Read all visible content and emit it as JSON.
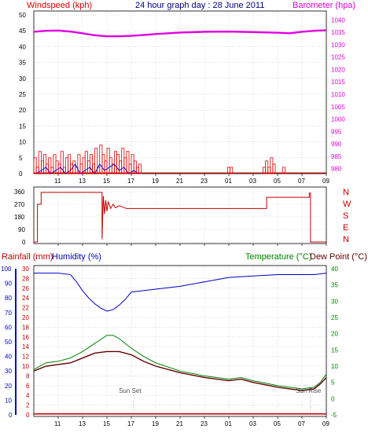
{
  "colors": {
    "wind": "#e00000",
    "wind_gust_fill": "#e00000",
    "wind_avg": "#0000d0",
    "wind_green": "#009000",
    "barometer": "#e000e0",
    "direction": "#c00000",
    "rainfall": "#c00000",
    "humidity": "#0000c0",
    "temperature": "#008000",
    "dewpoint": "#600000",
    "title": "#000080",
    "axis_right_temp": "#008000"
  },
  "chart_data": [
    {
      "type": "line",
      "title": "24 hour graph day : 28 June 2011",
      "ylabel_left": "Windspeed (kph)",
      "ylabel_right": "Barometer (hpa)",
      "x_ticks": [
        "11",
        "13",
        "15",
        "17",
        "19",
        "21",
        "23",
        "01",
        "03",
        "05",
        "07",
        "09"
      ],
      "y_left_ticks": [
        "0",
        "5",
        "10",
        "15",
        "20",
        "25",
        "30",
        "35",
        "40",
        "45",
        "50"
      ],
      "y_right_ticks": [
        "980",
        "985",
        "990",
        "995",
        "1000",
        "1005",
        "1010",
        "1015",
        "1020",
        "1025",
        "1030",
        "1035",
        "1040"
      ],
      "ylim_left": [
        0,
        50
      ],
      "ylim_right": [
        978,
        1042
      ],
      "grid": true,
      "series": [
        {
          "name": "Barometer (hpa)",
          "x": [
            9.0,
            10.0,
            11.0,
            12.0,
            13.0,
            14.0,
            15.0,
            16.0,
            17.0,
            18.0,
            19.0,
            21.0,
            23.0,
            25.0,
            27.0,
            29.0,
            30.0,
            31.0,
            32.0,
            33.0
          ],
          "values": [
            1035.2,
            1035.6,
            1035.7,
            1035.3,
            1034.6,
            1033.8,
            1033.4,
            1033.4,
            1033.6,
            1033.9,
            1034.3,
            1034.9,
            1035.2,
            1035.3,
            1035.1,
            1034.8,
            1034.6,
            1035.2,
            1035.6,
            1035.8
          ]
        },
        {
          "name": "Windspeed (kph)",
          "type": "bar",
          "x": [
            9.1,
            9.3,
            9.5,
            9.7,
            9.9,
            10.1,
            10.3,
            10.5,
            10.7,
            10.9,
            11.1,
            11.3,
            11.5,
            11.7,
            11.9,
            12.1,
            12.3,
            12.5,
            12.7,
            12.9,
            13.1,
            13.3,
            13.5,
            13.7,
            13.9,
            14.1,
            14.3,
            14.5,
            14.7,
            14.9,
            15.1,
            15.3,
            15.5,
            15.7,
            15.9,
            16.1,
            16.3,
            16.5,
            16.7,
            16.9,
            17.1,
            17.3,
            17.5,
            17.7,
            25.0,
            25.2,
            27.9,
            28.1,
            28.3,
            28.5,
            28.7,
            29.5
          ],
          "values": [
            5,
            2,
            7,
            4,
            6,
            3,
            5,
            2,
            6,
            4,
            3,
            7,
            2,
            5,
            6,
            3,
            4,
            2,
            6,
            3,
            5,
            7,
            4,
            6,
            3,
            8,
            2,
            9,
            6,
            4,
            8,
            5,
            3,
            7,
            6,
            4,
            8,
            5,
            7,
            3,
            6,
            4,
            2,
            3,
            2,
            2,
            2,
            4,
            2,
            5,
            3,
            2
          ]
        },
        {
          "name": "Average wind",
          "x": [
            9.2,
            9.6,
            10.0,
            10.4,
            10.8,
            11.2,
            11.6,
            12.0,
            12.4,
            12.8,
            13.2,
            13.6,
            14.0,
            14.4,
            14.8,
            15.2,
            15.6,
            16.0,
            16.4,
            16.8,
            17.2,
            17.6
          ],
          "values": [
            0,
            1,
            2,
            0,
            1,
            2,
            0,
            1,
            3,
            0,
            1,
            2,
            0,
            3,
            1,
            2,
            3,
            1,
            2,
            0,
            1,
            0
          ]
        }
      ]
    },
    {
      "type": "line",
      "ylabel_right": [
        "N",
        "W",
        "S",
        "E",
        "N"
      ],
      "y_left_ticks": [
        "360",
        "270",
        "180",
        "90",
        "0"
      ],
      "x_ticks": [
        "11",
        "13",
        "15",
        "17",
        "19",
        "21",
        "23",
        "01",
        "03",
        "05",
        "07",
        "09"
      ],
      "ylim": [
        0,
        360
      ],
      "series": [
        {
          "name": "Wind direction",
          "x": [
            9.0,
            9.3,
            9.3,
            9.6,
            9.6,
            14.6,
            14.6,
            14.7,
            14.8,
            14.9,
            15.0,
            15.1,
            15.3,
            15.5,
            15.7,
            16.0,
            16.3,
            16.6,
            17.0,
            28.1,
            28.1,
            31.6,
            31.6,
            31.7,
            31.7,
            33.0
          ],
          "values": [
            0,
            0,
            270,
            270,
            355,
            355,
            20,
            330,
            200,
            300,
            220,
            290,
            240,
            270,
            245,
            260,
            250,
            240,
            240,
            240,
            320,
            320,
            350,
            350,
            0,
            0
          ]
        }
      ]
    },
    {
      "type": "line",
      "ylabel_left": "Rainfall (mm)",
      "ylabel_left2": "Humidity (%)",
      "ylabel_right": "Temperature (°C)",
      "ylabel_right2": "Dew Point (°C)",
      "x_ticks": [
        "11",
        "13",
        "15",
        "17",
        "19",
        "21",
        "23",
        "01",
        "03",
        "05",
        "07",
        "09"
      ],
      "humidity_ticks": [
        "100",
        "90",
        "80",
        "70",
        "60",
        "50",
        "40",
        "30",
        "20",
        "10",
        "0"
      ],
      "rain_ticks": [
        "30",
        "28",
        "26",
        "24",
        "22",
        "20",
        "18",
        "16",
        "14",
        "12",
        "10",
        "8",
        "6",
        "4",
        "2",
        "0"
      ],
      "temp_ticks": [
        "40",
        "35",
        "30",
        "25",
        "20",
        "15",
        "10",
        "5",
        "0",
        "-5"
      ],
      "ylim_humidity": [
        0,
        100
      ],
      "ylim_rain": [
        0,
        30
      ],
      "ylim_temp": [
        -5,
        40
      ],
      "annotations": [
        {
          "text": "Sun Set",
          "x": 17.2
        },
        {
          "text": "Sun Rise",
          "x": 31.7
        }
      ],
      "series": [
        {
          "name": "Humidity (%)",
          "x": [
            9.0,
            11.0,
            12.0,
            12.5,
            13.0,
            13.5,
            14.0,
            14.5,
            15.0,
            15.5,
            16.0,
            16.5,
            17.0,
            18.0,
            19.0,
            21.0,
            23.0,
            25.0,
            27.0,
            29.0,
            31.0,
            32.0,
            33.0
          ],
          "values": [
            97,
            97,
            96,
            91,
            85,
            80,
            76,
            73,
            71,
            72,
            75,
            79,
            84,
            85,
            86,
            88,
            91,
            94,
            95,
            96,
            96,
            96,
            97
          ]
        },
        {
          "name": "Temperature (°C)",
          "x": [
            9.0,
            10.0,
            11.0,
            12.0,
            13.0,
            14.0,
            15.0,
            15.5,
            16.0,
            17.0,
            18.0,
            19.0,
            21.0,
            23.0,
            25.0,
            26.0,
            27.0,
            29.0,
            30.0,
            31.0,
            32.0,
            32.5,
            33.0
          ],
          "values": [
            9,
            11,
            11.5,
            12.5,
            14.5,
            17,
            19.5,
            19.5,
            18.5,
            15.5,
            13,
            11,
            8.5,
            7,
            6,
            6.5,
            5.5,
            4,
            3.5,
            3,
            3.5,
            5,
            7.5
          ]
        },
        {
          "name": "Dew Point (°C)",
          "x": [
            9.0,
            10.0,
            11.0,
            12.0,
            13.0,
            14.0,
            15.0,
            16.0,
            17.0,
            18.0,
            19.0,
            21.0,
            23.0,
            25.0,
            26.0,
            27.0,
            29.0,
            30.0,
            31.0,
            32.0,
            32.5,
            33.0
          ],
          "values": [
            8.5,
            10,
            10.5,
            11,
            12.5,
            14,
            14.5,
            14.5,
            13.5,
            11.5,
            10,
            8,
            6.5,
            5.5,
            6,
            5,
            3.5,
            3,
            2.5,
            3,
            4.5,
            6.5
          ]
        },
        {
          "name": "Rainfall (mm)",
          "x": [
            9.0,
            33.0
          ],
          "values": [
            0.2,
            0.2
          ]
        }
      ]
    }
  ]
}
